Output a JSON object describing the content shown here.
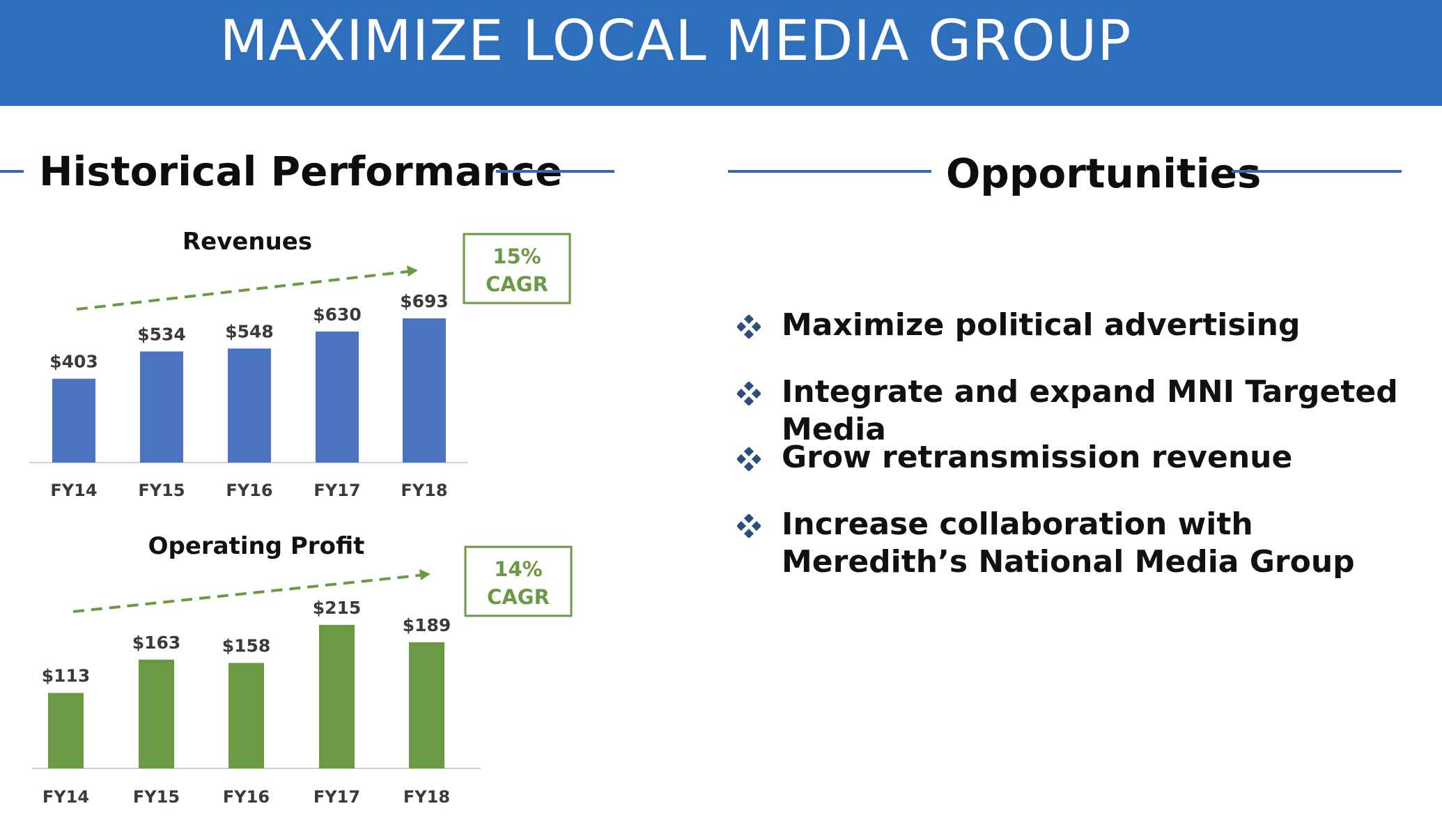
{
  "header": {
    "title": "MAXIMIZE LOCAL MEDIA GROUP",
    "background_color": "#2e6fbd"
  },
  "left_section": {
    "heading": "Historical Performance"
  },
  "right_section": {
    "heading": "Opportunities",
    "bullet_icon": "diamond-bullet-icon",
    "bullets": [
      "Maximize political advertising",
      "Integrate and expand MNI Targeted Media",
      "Grow retransmission revenue",
      "Increase collaboration with Meredith’s National Media Group"
    ]
  },
  "chart_data": [
    {
      "type": "bar",
      "title": "Revenues",
      "categories": [
        "FY14",
        "FY15",
        "FY16",
        "FY17",
        "FY18"
      ],
      "values": [
        403,
        534,
        548,
        630,
        693
      ],
      "value_labels": [
        "$403",
        "$534",
        "$548",
        "$630",
        "$693"
      ],
      "ylim": [
        0,
        693
      ],
      "color": "#4a73c0",
      "grid": false,
      "annotation": "15% CAGR",
      "annotation_color": "#6a9a44"
    },
    {
      "type": "bar",
      "title": "Operating Profit",
      "categories": [
        "FY14",
        "FY15",
        "FY16",
        "FY17",
        "FY18"
      ],
      "values": [
        113,
        163,
        158,
        215,
        189
      ],
      "value_labels": [
        "$113",
        "$163",
        "$158",
        "$215",
        "$189"
      ],
      "ylim": [
        0,
        215
      ],
      "color": "#6a9a44",
      "grid": false,
      "annotation": "14% CAGR",
      "annotation_color": "#6a9a44"
    }
  ]
}
